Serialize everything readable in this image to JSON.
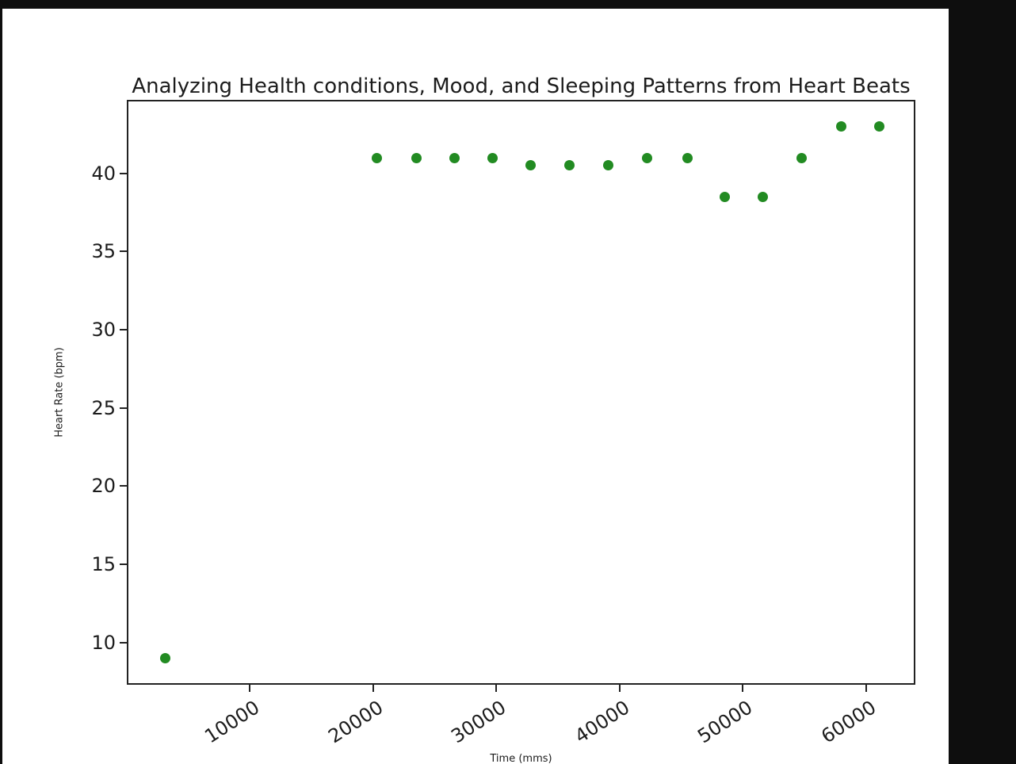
{
  "chart_data": {
    "type": "scatter",
    "title": "Analyzing Health conditions, Mood, and Sleeping Patterns from Heart Beats",
    "xlabel": "Time (mms)",
    "ylabel": "Heart Rate (bpm)",
    "legend": "none",
    "grid": false,
    "marker_color": "#228B22",
    "axis_color": "#222222",
    "figure_background": "#ffffff",
    "page_background": "#0e0e0e",
    "xlim": [
      0,
      64000
    ],
    "ylim": [
      7.3,
      44.7
    ],
    "x_ticks": [
      10000,
      20000,
      30000,
      40000,
      50000,
      60000
    ],
    "y_ticks": [
      40,
      35,
      30,
      25,
      20,
      15,
      10
    ],
    "points": [
      {
        "x": 3100,
        "y": 9
      },
      {
        "x": 20300,
        "y": 41
      },
      {
        "x": 23500,
        "y": 41
      },
      {
        "x": 26600,
        "y": 41
      },
      {
        "x": 29700,
        "y": 41
      },
      {
        "x": 32800,
        "y": 40.5
      },
      {
        "x": 35900,
        "y": 40.5
      },
      {
        "x": 39100,
        "y": 40.5
      },
      {
        "x": 42200,
        "y": 41
      },
      {
        "x": 45500,
        "y": 41
      },
      {
        "x": 48500,
        "y": 38.5
      },
      {
        "x": 51600,
        "y": 38.5
      },
      {
        "x": 54800,
        "y": 41
      },
      {
        "x": 58000,
        "y": 43
      },
      {
        "x": 61100,
        "y": 43
      }
    ]
  }
}
